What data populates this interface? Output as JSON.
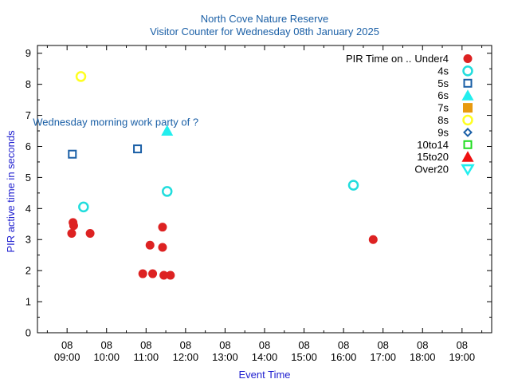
{
  "chart_data": {
    "type": "scatter",
    "title": "North Cove Nature Reserve",
    "subtitle": "Visitor Counter for Wednesday 08th January 2025",
    "xlabel": "Event Time",
    "ylabel": "PIR active time in seconds",
    "xlim": [
      "08:15",
      "19:45"
    ],
    "ylim": [
      0,
      9.25
    ],
    "x_ticks": [
      {
        "top": "08",
        "bottom": "09:00",
        "time": "09:00"
      },
      {
        "top": "08",
        "bottom": "10:00",
        "time": "10:00"
      },
      {
        "top": "08",
        "bottom": "11:00",
        "time": "11:00"
      },
      {
        "top": "08",
        "bottom": "12:00",
        "time": "12:00"
      },
      {
        "top": "08",
        "bottom": "13:00",
        "time": "13:00"
      },
      {
        "top": "08",
        "bottom": "14:00",
        "time": "14:00"
      },
      {
        "top": "08",
        "bottom": "15:00",
        "time": "15:00"
      },
      {
        "top": "08",
        "bottom": "16:00",
        "time": "16:00"
      },
      {
        "top": "08",
        "bottom": "17:00",
        "time": "17:00"
      },
      {
        "top": "08",
        "bottom": "18:00",
        "time": "18:00"
      },
      {
        "top": "08",
        "bottom": "19:00",
        "time": "19:00"
      }
    ],
    "y_ticks": [
      "0",
      "1",
      "2",
      "3",
      "4",
      "5",
      "6",
      "7",
      "8",
      "9"
    ],
    "legend_title": "PIR Time on ..",
    "legend_position": "top-right",
    "annotation": {
      "text": "Wednesday morning work party of ?",
      "x": "08:08",
      "y": 6.8
    },
    "series": [
      {
        "name": "Under4",
        "marker": "circle-filled",
        "color": "#dd2222",
        "points": [
          {
            "x": "09:07",
            "y": 3.2
          },
          {
            "x": "09:09",
            "y": 3.55
          },
          {
            "x": "09:10",
            "y": 3.45
          },
          {
            "x": "09:35",
            "y": 3.2
          },
          {
            "x": "10:55",
            "y": 1.9
          },
          {
            "x": "11:06",
            "y": 2.82
          },
          {
            "x": "11:10",
            "y": 1.9
          },
          {
            "x": "11:25",
            "y": 3.4
          },
          {
            "x": "11:25",
            "y": 2.75
          },
          {
            "x": "11:27",
            "y": 1.85
          },
          {
            "x": "11:37",
            "y": 1.85
          },
          {
            "x": "16:45",
            "y": 3.0
          }
        ]
      },
      {
        "name": "4s",
        "marker": "circle-open",
        "color": "#22dddd",
        "points": [
          {
            "x": "09:25",
            "y": 4.05
          },
          {
            "x": "11:32",
            "y": 4.55
          },
          {
            "x": "16:15",
            "y": 4.75
          }
        ]
      },
      {
        "name": "5s",
        "marker": "square-open",
        "color": "#1a5fa6",
        "points": [
          {
            "x": "09:08",
            "y": 5.75
          },
          {
            "x": "10:47",
            "y": 5.92
          }
        ]
      },
      {
        "name": "6s",
        "marker": "triangle-up-filled",
        "color": "#22eeee",
        "points": [
          {
            "x": "11:32",
            "y": 6.5
          }
        ]
      },
      {
        "name": "7s",
        "marker": "square-filled",
        "color": "#e89a10",
        "points": []
      },
      {
        "name": "8s",
        "marker": "circle-open",
        "color": "#ffff22",
        "points": [
          {
            "x": "09:21",
            "y": 8.25
          }
        ]
      },
      {
        "name": "9s",
        "marker": "diamond-open",
        "color": "#1a5fa6",
        "points": []
      },
      {
        "name": "10to14",
        "marker": "square-open",
        "color": "#22dd22",
        "points": []
      },
      {
        "name": "15to20",
        "marker": "triangle-up-filled",
        "color": "#ee1111",
        "points": []
      },
      {
        "name": "Over20",
        "marker": "triangle-down-open",
        "color": "#22eeee",
        "points": []
      }
    ]
  }
}
